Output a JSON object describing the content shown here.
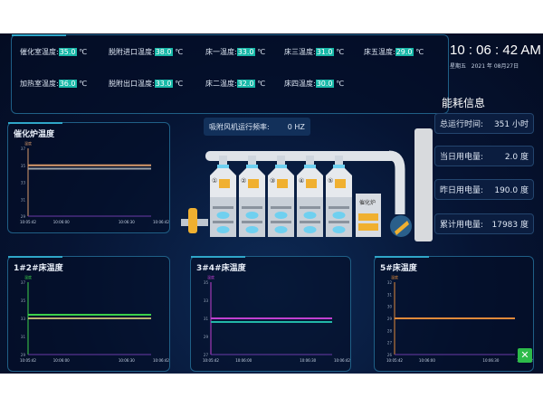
{
  "header": {
    "items": [
      {
        "label": "催化室温度:",
        "value": "35.0",
        "unit": "℃"
      },
      {
        "label": "脱附进口温度:",
        "value": "38.0",
        "unit": "℃"
      },
      {
        "label": "床一温度:",
        "value": "33.0",
        "unit": "℃"
      },
      {
        "label": "床三温度:",
        "value": "31.0",
        "unit": "℃"
      },
      {
        "label": "床五温度:",
        "value": "29.0",
        "unit": "℃"
      },
      {
        "label": "加热室温度:",
        "value": "36.0",
        "unit": "℃"
      },
      {
        "label": "脱附出口温度:",
        "value": "33.0",
        "unit": "℃"
      },
      {
        "label": "床二温度:",
        "value": "32.0",
        "unit": "℃"
      },
      {
        "label": "床四温度:",
        "value": "30.0",
        "unit": "℃"
      }
    ]
  },
  "clock": {
    "time": "10 : 06 : 42 AM",
    "weekday": "星期五",
    "date": "2021 年 08月27日"
  },
  "energy": {
    "title": "能耗信息",
    "cards": [
      {
        "label": "总运行时间:",
        "value": "351 小时"
      },
      {
        "label": "当日用电量:",
        "value": "2.0 度"
      },
      {
        "label": "昨日用电量:",
        "value": "190.0 度"
      },
      {
        "label": "累计用电量:",
        "value": "17983 度"
      }
    ]
  },
  "fan": {
    "label": "吸附风机运行频率:",
    "value": "0 HZ"
  },
  "equipment": {
    "beds": [
      "①",
      "②",
      "③",
      "④",
      "⑤"
    ],
    "furnace": "催化炉"
  },
  "close_icon": "close-icon",
  "chart_data": [
    {
      "type": "line",
      "title": "催化炉温度",
      "ylabel": "温度",
      "x": [
        "10:05:42",
        "10:06:00",
        "10:06:30",
        "10:06:42"
      ],
      "ylim": [
        29,
        37
      ],
      "yticks": [
        29,
        31,
        33,
        35,
        37
      ],
      "series": [
        {
          "color": "#d89a6a",
          "values": [
            35,
            35,
            35,
            35
          ]
        },
        {
          "color": "#9aa0a6",
          "values": [
            34.6,
            34.6,
            34.6,
            34.6
          ]
        },
        {
          "color": "#6a3aa8",
          "values": [
            29,
            29,
            29,
            29
          ]
        }
      ]
    },
    {
      "type": "line",
      "title": "1#2#床温度",
      "ylabel": "温度",
      "x": [
        "10:05:42",
        "10:06:00",
        "10:06:30",
        "10:06:42"
      ],
      "ylim": [
        29,
        37
      ],
      "yticks": [
        29,
        31,
        33,
        35,
        37
      ],
      "series": [
        {
          "color": "#3bd04a",
          "values": [
            33.4,
            33.4,
            33.4,
            33.4
          ]
        },
        {
          "color": "#b8b070",
          "values": [
            33,
            33,
            33,
            33
          ]
        },
        {
          "color": "#6a3aa8",
          "values": [
            29,
            29,
            29,
            29
          ]
        }
      ]
    },
    {
      "type": "line",
      "title": "3#4#床温度",
      "ylabel": "温度",
      "x": [
        "10:05:42",
        "10:06:00",
        "10:06:30",
        "10:06:42"
      ],
      "ylim": [
        27,
        35
      ],
      "yticks": [
        27,
        29,
        31,
        33,
        35
      ],
      "series": [
        {
          "color": "#c040d0",
          "values": [
            31,
            31,
            31,
            31
          ]
        },
        {
          "color": "#22b8a8",
          "values": [
            30.6,
            30.6,
            30.6,
            30.6
          ]
        },
        {
          "color": "#6a3aa8",
          "values": [
            27,
            27,
            27,
            27
          ]
        }
      ]
    },
    {
      "type": "line",
      "title": "5#床温度",
      "ylabel": "温度",
      "x": [
        "10:05:42",
        "10:06:00",
        "10:06:30",
        "10:06:42"
      ],
      "ylim": [
        26,
        32
      ],
      "yticks": [
        26,
        27,
        28,
        29,
        30,
        31,
        32
      ],
      "series": [
        {
          "color": "#e08a3a",
          "values": [
            29,
            29,
            29,
            29
          ]
        },
        {
          "color": "#6a3aa8",
          "values": [
            26,
            26,
            26,
            26
          ]
        }
      ]
    }
  ]
}
